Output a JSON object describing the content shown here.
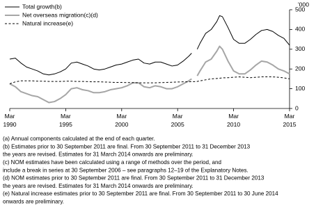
{
  "chart_data": {
    "type": "line",
    "y_label": "'000",
    "x": [
      1990,
      1990.5,
      1991,
      1991.5,
      1992,
      1992.5,
      1993,
      1993.5,
      1994,
      1994.5,
      1995,
      1995.5,
      1996,
      1996.5,
      1997,
      1997.5,
      1998,
      1998.5,
      1999,
      1999.5,
      2000,
      2000.5,
      2001,
      2001.5,
      2002,
      2002.5,
      2003,
      2003.5,
      2004,
      2004.5,
      2005,
      2005.5,
      2006,
      2006.25,
      2006.5,
      2006.75,
      2007,
      2007.5,
      2008,
      2008.5,
      2008.75,
      2009,
      2009.5,
      2010,
      2010.5,
      2011,
      2011.5,
      2012,
      2012.5,
      2013,
      2013.5,
      2014,
      2014.5,
      2015
    ],
    "series": [
      {
        "name": "Total growth(b)",
        "color": "#000000",
        "dash": false,
        "values": [
          250,
          255,
          230,
          210,
          200,
          190,
          175,
          170,
          175,
          185,
          200,
          230,
          235,
          225,
          215,
          200,
          195,
          200,
          210,
          220,
          225,
          235,
          245,
          250,
          230,
          225,
          235,
          235,
          225,
          215,
          220,
          240,
          265,
          280,
          null,
          300,
          330,
          380,
          400,
          440,
          470,
          465,
          410,
          350,
          330,
          330,
          350,
          375,
          395,
          400,
          390,
          370,
          355,
          320
        ]
      },
      {
        "name": "Net overseas migration(c)(d)",
        "color": "#a6a6a6",
        "dash": false,
        "values": [
          125,
          110,
          85,
          75,
          65,
          60,
          45,
          30,
          35,
          50,
          70,
          100,
          105,
          95,
          90,
          80,
          80,
          85,
          95,
          100,
          105,
          115,
          130,
          130,
          110,
          105,
          115,
          110,
          100,
          100,
          110,
          125,
          140,
          150,
          null,
          165,
          190,
          235,
          250,
          290,
          315,
          300,
          240,
          190,
          175,
          175,
          195,
          220,
          240,
          235,
          220,
          200,
          190,
          175
        ]
      },
      {
        "name": "Natural increase(e)",
        "color": "#000000",
        "dash": true,
        "values": [
          125,
          135,
          140,
          140,
          140,
          138,
          138,
          137,
          137,
          137,
          138,
          138,
          137,
          137,
          136,
          135,
          135,
          134,
          133,
          132,
          132,
          131,
          131,
          130,
          130,
          130,
          130,
          131,
          132,
          133,
          134,
          135,
          135,
          136,
          136,
          137,
          140,
          145,
          150,
          152,
          153,
          155,
          156,
          158,
          160,
          158,
          156,
          158,
          160,
          160,
          160,
          158,
          155,
          150
        ]
      }
    ],
    "xlim": [
      1990,
      2015
    ],
    "xticks": [
      {
        "value": 1990,
        "label": "Mar 1990"
      },
      {
        "value": 1995,
        "label": "Mar 1995"
      },
      {
        "value": 2000,
        "label": "Mar 2000"
      },
      {
        "value": 2005,
        "label": "Mar 2005"
      },
      {
        "value": 2010,
        "label": "Mar 2010"
      },
      {
        "value": 2015,
        "label": "Mar 2015"
      }
    ],
    "ylim": [
      0,
      500
    ],
    "yticks": [
      0,
      100,
      200,
      300,
      400,
      500
    ],
    "legend": "top-left",
    "notes": [
      "(a) Annual components calculated at the end of each quarter.",
      "(b) Estimates prior to 30 September 2011 are final. From 30 September 2011 to 31 December 2013",
      "the years are revised. Estimates for 31 March 2014 onwards are preliminary.",
      "(c) NOM estimates have been calculated using a range of methods over the period, and",
      "include a break in series at 30 September 2006 – see paragraphs 12–19 of the Explanatory Notes.",
      "(d) NOM estimates prior to 30 September 2011 are final. From 30 September 2011 to 31 December 2013",
      "the years are revised. Estimates for 31 March 2014 onwards are preliminary.",
      "(e) Natural increase estimates prior to 30 September 2011 are final. From 30 September 2011 to 30 June 2014",
      "onwards are preliminary."
    ]
  }
}
